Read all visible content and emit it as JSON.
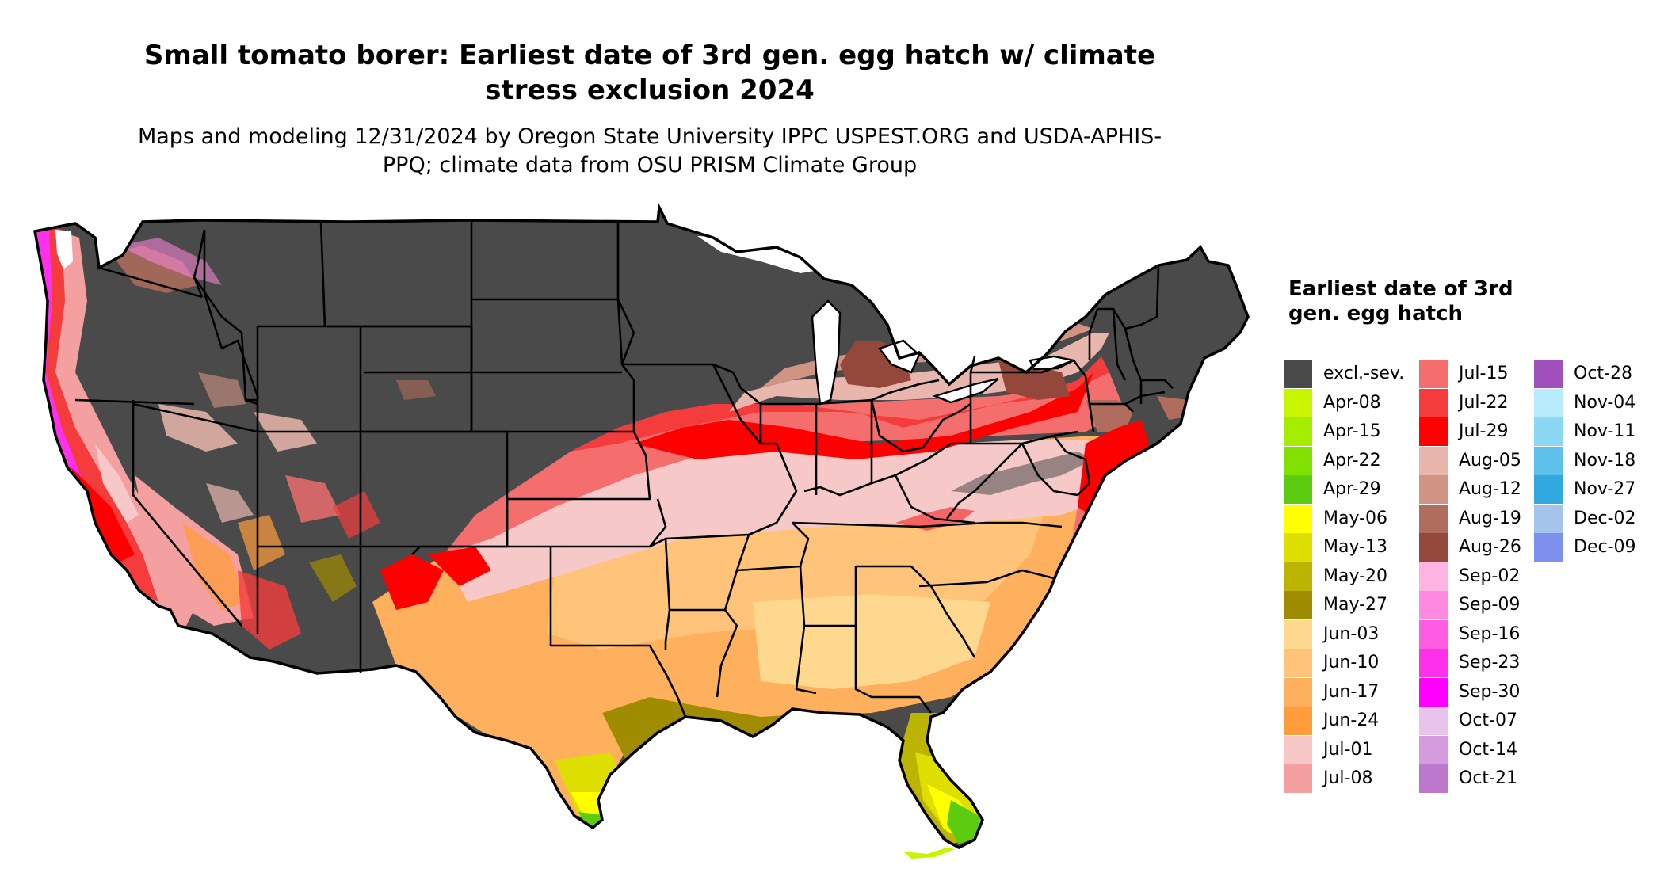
{
  "title": "Small tomato borer: Earliest date of 3rd gen. egg hatch w/ climate stress exclusion 2024",
  "subtitle": "Maps and modeling 12/31/2024 by Oregon State University IPPC USPEST.ORG and USDA-APHIS-PPQ; climate data from OSU PRISM Climate Group",
  "legend": {
    "title": "Earliest date of 3rd gen. egg hatch",
    "columns": [
      [
        {
          "label": "excl.-sev.",
          "color": "#4a4a4a"
        },
        {
          "label": "Apr-08",
          "color": "#c8f400"
        },
        {
          "label": "Apr-15",
          "color": "#a4ec00"
        },
        {
          "label": "Apr-22",
          "color": "#80e000"
        },
        {
          "label": "Apr-29",
          "color": "#5ccc10"
        },
        {
          "label": "May-06",
          "color": "#ffff00"
        },
        {
          "label": "May-13",
          "color": "#dede00"
        },
        {
          "label": "May-20",
          "color": "#bcb400"
        },
        {
          "label": "May-27",
          "color": "#a08c00"
        },
        {
          "label": "Jun-03",
          "color": "#ffd890"
        },
        {
          "label": "Jun-10",
          "color": "#ffc47a"
        },
        {
          "label": "Jun-17",
          "color": "#ffb05c"
        },
        {
          "label": "Jun-24",
          "color": "#ff9c3c"
        },
        {
          "label": "Jul-01",
          "color": "#f6c8c8"
        },
        {
          "label": "Jul-08",
          "color": "#f4a0a0"
        }
      ],
      [
        {
          "label": "Jul-15",
          "color": "#f46e6e"
        },
        {
          "label": "Jul-22",
          "color": "#f43c3c"
        },
        {
          "label": "Jul-29",
          "color": "#ff0000"
        },
        {
          "label": "Aug-05",
          "color": "#e8b6ac"
        },
        {
          "label": "Aug-12",
          "color": "#d09484"
        },
        {
          "label": "Aug-19",
          "color": "#b06c5c"
        },
        {
          "label": "Aug-26",
          "color": "#94483c"
        },
        {
          "label": "Sep-02",
          "color": "#ffb4e4"
        },
        {
          "label": "Sep-09",
          "color": "#ff88e0"
        },
        {
          "label": "Sep-16",
          "color": "#ff5ce4"
        },
        {
          "label": "Sep-23",
          "color": "#ff30ec"
        },
        {
          "label": "Sep-30",
          "color": "#ff00ff"
        },
        {
          "label": "Oct-07",
          "color": "#e8c4ec"
        },
        {
          "label": "Oct-14",
          "color": "#d49cdc"
        },
        {
          "label": "Oct-21",
          "color": "#bc78cc"
        }
      ],
      [
        {
          "label": "Oct-28",
          "color": "#a050bc"
        },
        {
          "label": "Nov-04",
          "color": "#b8ecfc"
        },
        {
          "label": "Nov-11",
          "color": "#8cd8f4"
        },
        {
          "label": "Nov-18",
          "color": "#60c0ec"
        },
        {
          "label": "Nov-27",
          "color": "#30a8e0"
        },
        {
          "label": "Dec-02",
          "color": "#a4c4ec"
        },
        {
          "label": "Dec-09",
          "color": "#7c90ec"
        }
      ]
    ]
  }
}
